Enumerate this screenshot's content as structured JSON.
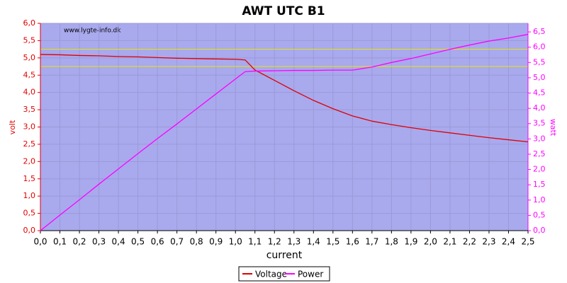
{
  "chart_data": {
    "type": "line",
    "title": "AWT UTC B1",
    "watermark": "www.lygte-info.dk",
    "xlabel": "current",
    "ylabel": "volt",
    "y2label": "watt",
    "x": [
      0,
      0.1,
      0.2,
      0.3,
      0.4,
      0.5,
      0.6,
      0.7,
      0.8,
      0.9,
      1.0,
      1.05,
      1.1,
      1.2,
      1.3,
      1.4,
      1.5,
      1.6,
      1.7,
      1.8,
      1.9,
      2.0,
      2.1,
      2.2,
      2.3,
      2.4,
      2.5
    ],
    "series": [
      {
        "name": "Voltage",
        "color": "#e00000",
        "values": [
          5.1,
          5.09,
          5.07,
          5.06,
          5.04,
          5.03,
          5.01,
          4.99,
          4.98,
          4.97,
          4.96,
          4.94,
          4.65,
          4.35,
          4.05,
          3.77,
          3.53,
          3.32,
          3.17,
          3.07,
          2.98,
          2.9,
          2.83,
          2.76,
          2.69,
          2.63,
          2.57
        ]
      },
      {
        "name": "Power",
        "color": "#ff00ff",
        "axis": "y2",
        "values": [
          0,
          0.51,
          1.01,
          1.52,
          2.02,
          2.52,
          3.01,
          3.49,
          3.98,
          4.47,
          4.96,
          5.2,
          5.22,
          5.23,
          5.24,
          5.24,
          5.25,
          5.25,
          5.35,
          5.5,
          5.63,
          5.78,
          5.93,
          6.07,
          6.2,
          6.3,
          6.42
        ]
      }
    ],
    "hlines": [
      5.25,
      4.75
    ],
    "hline_color": "#e8e800",
    "xlim": [
      0,
      2.5
    ],
    "ylim": [
      0,
      6
    ],
    "y2lim": [
      0,
      6.78
    ],
    "grid": true,
    "xticks": [
      {
        "value": 0,
        "label": "0,0"
      },
      {
        "value": 0.1,
        "label": "0,1"
      },
      {
        "value": 0.2,
        "label": "0,2"
      },
      {
        "value": 0.3,
        "label": "0,3"
      },
      {
        "value": 0.4,
        "label": "0,4"
      },
      {
        "value": 0.5,
        "label": "0,5"
      },
      {
        "value": 0.6,
        "label": "0,6"
      },
      {
        "value": 0.7,
        "label": "0,7"
      },
      {
        "value": 0.8,
        "label": "0,8"
      },
      {
        "value": 0.9,
        "label": "0,9"
      },
      {
        "value": 1.0,
        "label": "1,0"
      },
      {
        "value": 1.1,
        "label": "1,1"
      },
      {
        "value": 1.2,
        "label": "1,2"
      },
      {
        "value": 1.3,
        "label": "1,3"
      },
      {
        "value": 1.4,
        "label": "1,4"
      },
      {
        "value": 1.5,
        "label": "1,5"
      },
      {
        "value": 1.6,
        "label": "1,6"
      },
      {
        "value": 1.7,
        "label": "1,7"
      },
      {
        "value": 1.8,
        "label": "1,8"
      },
      {
        "value": 1.9,
        "label": "1,9"
      },
      {
        "value": 2.0,
        "label": "2,0"
      },
      {
        "value": 2.1,
        "label": "2,1"
      },
      {
        "value": 2.2,
        "label": "2,2"
      },
      {
        "value": 2.3,
        "label": "2,3"
      },
      {
        "value": 2.4,
        "label": "2,4"
      },
      {
        "value": 2.5,
        "label": "2,5"
      }
    ],
    "yticks": [
      {
        "value": 0,
        "label": "0,0"
      },
      {
        "value": 0.5,
        "label": "0,5"
      },
      {
        "value": 1.0,
        "label": "1,0"
      },
      {
        "value": 1.5,
        "label": "1,5"
      },
      {
        "value": 2.0,
        "label": "2,0"
      },
      {
        "value": 2.5,
        "label": "2,5"
      },
      {
        "value": 3.0,
        "label": "3,0"
      },
      {
        "value": 3.5,
        "label": "3,5"
      },
      {
        "value": 4.0,
        "label": "4,0"
      },
      {
        "value": 4.5,
        "label": "4,5"
      },
      {
        "value": 5.0,
        "label": "5,0"
      },
      {
        "value": 5.5,
        "label": "5,5"
      },
      {
        "value": 6.0,
        "label": "6,0"
      }
    ],
    "y2ticks": [
      {
        "value": 0,
        "label": "0,0"
      },
      {
        "value": 0.5,
        "label": "0,5"
      },
      {
        "value": 1.0,
        "label": "1,0"
      },
      {
        "value": 1.5,
        "label": "1,5"
      },
      {
        "value": 2.0,
        "label": "2,0"
      },
      {
        "value": 2.5,
        "label": "2,5"
      },
      {
        "value": 3.0,
        "label": "3,0"
      },
      {
        "value": 3.5,
        "label": "3,5"
      },
      {
        "value": 4.0,
        "label": "4,0"
      },
      {
        "value": 4.5,
        "label": "4,5"
      },
      {
        "value": 5.0,
        "label": "5,0"
      },
      {
        "value": 5.5,
        "label": "5,5"
      },
      {
        "value": 6.0,
        "label": "6,0"
      },
      {
        "value": 6.5,
        "label": "6,5"
      }
    ]
  }
}
